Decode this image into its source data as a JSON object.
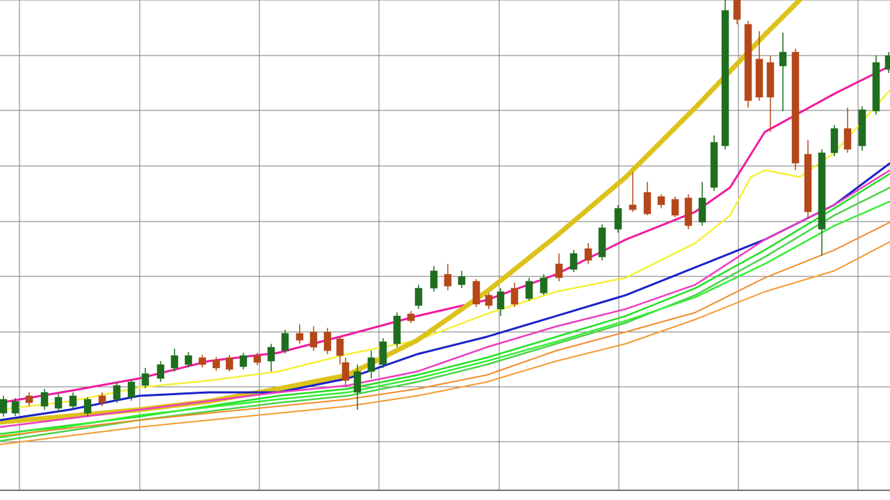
{
  "chart_data": {
    "type": "candlestick",
    "xlim": [
      0,
      64
    ],
    "ylim": [
      0,
      705
    ],
    "xticks": [
      1.4,
      10.05,
      18.65,
      27.25,
      35.9,
      44.5,
      53.1,
      61.7
    ],
    "yticks": [
      69,
      148,
      227,
      307,
      386,
      466,
      546,
      625,
      705
    ],
    "grid": true,
    "candles": {
      "up_color": "#1f6e1f",
      "down_color": "#b5481a",
      "x": [
        0.25,
        1.1,
        2.1,
        3.2,
        4.2,
        5.25,
        6.3,
        7.35,
        8.4,
        9.45,
        10.45,
        11.55,
        12.55,
        13.55,
        14.55,
        15.55,
        16.5,
        17.5,
        18.5,
        19.5,
        20.5,
        21.55,
        22.55,
        23.55,
        24.45,
        24.85,
        25.7,
        26.7,
        27.55,
        28.55,
        29.55,
        30.1,
        31.2,
        32.2,
        33.2,
        34.25,
        35.15,
        36,
        37,
        38.05,
        39.1,
        40.2,
        41.25,
        42.3,
        43.3,
        44.45,
        45.5,
        46.55,
        47.55,
        48.55,
        49.5,
        50.5,
        51.35,
        52.15,
        53,
        53.8,
        54.6,
        55.4,
        56.3,
        57.2,
        58.1,
        59.1,
        60,
        60.95,
        62,
        63,
        63.9
      ],
      "open": [
        110,
        110,
        135,
        120,
        117,
        120,
        110,
        135,
        130,
        133,
        150,
        160,
        175,
        180,
        190,
        187,
        190,
        177,
        193,
        185,
        200,
        225,
        227,
        227,
        217,
        183,
        140,
        170,
        180,
        210,
        253,
        265,
        290,
        310,
        295,
        300,
        280,
        260,
        290,
        275,
        283,
        325,
        317,
        347,
        335,
        375,
        410,
        428,
        422,
        418,
        420,
        385,
        435,
        495,
        705,
        670,
        620,
        615,
        610,
        630,
        483,
        375,
        485,
        520,
        495,
        545,
        605
      ],
      "high": [
        135,
        132,
        140,
        145,
        138,
        140,
        133,
        140,
        155,
        158,
        175,
        185,
        203,
        198,
        194,
        191,
        194,
        197,
        197,
        210,
        230,
        238,
        235,
        233,
        220,
        190,
        180,
        200,
        218,
        255,
        257,
        295,
        322,
        325,
        315,
        303,
        283,
        290,
        298,
        305,
        310,
        340,
        345,
        355,
        382,
        410,
        457,
        443,
        425,
        422,
        425,
        443,
        510,
        705,
        705,
        675,
        660,
        625,
        658,
        635,
        503,
        490,
        525,
        550,
        552,
        625,
        630
      ],
      "low": [
        105,
        106,
        120,
        115,
        112,
        116,
        106,
        120,
        125,
        128,
        146,
        155,
        170,
        176,
        176,
        171,
        170,
        173,
        179,
        170,
        196,
        210,
        200,
        195,
        180,
        150,
        115,
        160,
        175,
        205,
        240,
        260,
        285,
        287,
        290,
        263,
        260,
        250,
        263,
        272,
        280,
        300,
        313,
        325,
        330,
        370,
        400,
        395,
        405,
        392,
        375,
        380,
        430,
        490,
        670,
        550,
        560,
        515,
        545,
        460,
        390,
        337,
        480,
        485,
        488,
        540,
        600
      ],
      "close": [
        130,
        127,
        125,
        140,
        133,
        135,
        130,
        125,
        150,
        155,
        167,
        180,
        193,
        193,
        180,
        175,
        173,
        193,
        183,
        205,
        225,
        215,
        205,
        200,
        193,
        157,
        170,
        190,
        213,
        250,
        243,
        290,
        315,
        293,
        307,
        267,
        265,
        285,
        267,
        300,
        305,
        305,
        340,
        330,
        377,
        405,
        403,
        397,
        410,
        395,
        380,
        420,
        500,
        690,
        677,
        560,
        565,
        565,
        630,
        470,
        400,
        485,
        520,
        490,
        547,
        615,
        625
      ]
    },
    "series": [
      {
        "color": "#f01aa0",
        "line_width": 3,
        "x": [
          0,
          5,
          10,
          15,
          20,
          25,
          30,
          35,
          40,
          45,
          50,
          52.5,
          55,
          60,
          64
        ],
        "values": [
          125,
          142,
          160,
          185,
          197,
          223,
          250,
          273,
          310,
          360,
          400,
          435,
          515,
          570,
          610
        ]
      },
      {
        "color": "#f4f03a",
        "line_width": 2.5,
        "x": [
          0,
          5,
          10,
          15,
          20,
          25,
          30,
          35,
          40,
          45,
          50,
          52.5,
          54,
          55,
          57.5,
          60,
          64
        ],
        "values": [
          115,
          127,
          147,
          157,
          170,
          195,
          215,
          253,
          285,
          305,
          355,
          395,
          450,
          460,
          450,
          485,
          575
        ]
      },
      {
        "color": "#dcc21a",
        "line_width": 7,
        "x": [
          0,
          10,
          15,
          20,
          25,
          30,
          35,
          40,
          45,
          50,
          55,
          57.5
        ],
        "values": [
          97,
          115,
          127,
          145,
          165,
          215,
          285,
          365,
          450,
          550,
          655,
          705
        ]
      },
      {
        "color": "#1a22c8",
        "line_width": 3,
        "x": [
          0,
          5,
          10,
          15,
          20,
          25,
          30,
          35,
          40,
          45,
          50,
          55,
          60,
          64
        ],
        "values": [
          100,
          115,
          135,
          140,
          140,
          160,
          195,
          220,
          250,
          280,
          320,
          360,
          410,
          470
        ]
      },
      {
        "color": "#ec3cc0",
        "line_width": 2.5,
        "x": [
          0,
          10,
          20,
          25,
          30,
          35,
          40,
          45,
          50,
          55,
          60,
          64
        ],
        "values": [
          90,
          115,
          140,
          150,
          170,
          205,
          235,
          260,
          295,
          360,
          410,
          460
        ]
      },
      {
        "color": "#22e022",
        "line_width": 2.5,
        "x": [
          0,
          10,
          20,
          25,
          30,
          35,
          40,
          45,
          50,
          55,
          60,
          64
        ],
        "values": [
          80,
          105,
          135,
          145,
          165,
          190,
          220,
          250,
          290,
          345,
          405,
          455
        ]
      },
      {
        "color": "#4cd24c",
        "line_width": 2.5,
        "x": [
          0,
          10,
          20,
          25,
          30,
          35,
          40,
          45,
          50,
          55,
          60,
          64
        ],
        "values": [
          70,
          100,
          125,
          135,
          155,
          180,
          210,
          240,
          280,
          335,
          395,
          435
        ]
      },
      {
        "color": "#36ee36",
        "line_width": 2.5,
        "x": [
          0,
          10,
          20,
          25,
          30,
          35,
          40,
          45,
          50,
          55,
          60,
          64
        ],
        "values": [
          75,
          107,
          130,
          140,
          160,
          185,
          213,
          243,
          277,
          325,
          380,
          415
        ]
      },
      {
        "color": "#f28a2a",
        "line_width": 2,
        "x": [
          0,
          10,
          20,
          25,
          30,
          35,
          40,
          45,
          50,
          55,
          60,
          64
        ],
        "values": [
          77,
          100,
          120,
          130,
          145,
          165,
          200,
          227,
          255,
          305,
          345,
          385
        ]
      },
      {
        "color": "#f39a30",
        "line_width": 2,
        "x": [
          0,
          10,
          20,
          25,
          30,
          35,
          40,
          45,
          50,
          55,
          60,
          64
        ],
        "values": [
          65,
          90,
          110,
          120,
          135,
          155,
          185,
          210,
          245,
          285,
          315,
          357
        ]
      }
    ]
  }
}
